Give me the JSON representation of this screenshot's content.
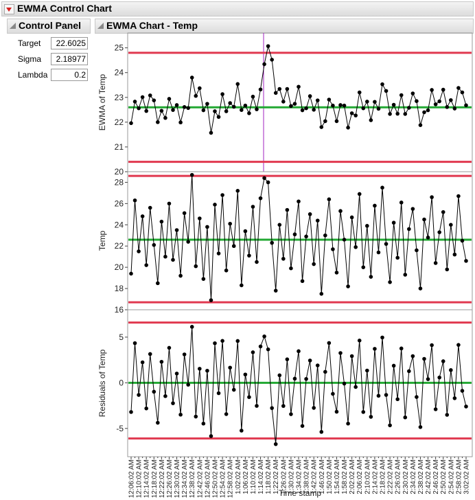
{
  "header": {
    "title": "EWMA Control Chart"
  },
  "control_panel": {
    "title": "Control Panel",
    "fields": [
      {
        "label": "Target",
        "value": "22.6025"
      },
      {
        "label": "Sigma",
        "value": "2.18977"
      },
      {
        "label": "Lambda",
        "value": "0.2"
      }
    ]
  },
  "chart_panel": {
    "title": "EWMA Chart - Temp"
  },
  "chart_data": [
    {
      "type": "line",
      "y_label": "EWMA of Temp",
      "color": "#000000",
      "ylim": [
        20,
        25.6
      ],
      "yticks": [
        20,
        21,
        22,
        23,
        24,
        25
      ],
      "center_line": 22.6,
      "ucl": 24.8,
      "lcl": 20.4,
      "center_color": "#22a832",
      "limit_color": "#e0384f",
      "values": [
        21.96,
        22.83,
        22.56,
        23.01,
        22.45,
        23.08,
        22.88,
        22.0,
        22.46,
        22.17,
        22.94,
        22.49,
        22.69,
        21.99,
        22.61,
        22.57,
        23.8,
        23.06,
        23.37,
        22.48,
        22.74,
        21.57,
        22.44,
        22.21,
        23.13,
        22.44,
        22.77,
        22.62,
        23.54,
        22.49,
        22.67,
        22.36,
        23.03,
        22.52,
        23.32,
        24.34,
        25.07,
        24.52,
        23.18,
        23.34,
        22.83,
        23.34,
        22.65,
        22.74,
        23.43,
        22.48,
        22.56,
        23.05,
        22.5,
        22.88,
        21.8,
        22.04,
        22.91,
        22.67,
        22.04,
        22.69,
        22.67,
        21.78,
        22.36,
        22.27,
        23.2,
        22.56,
        22.83,
        22.08,
        22.82,
        22.54,
        23.53,
        23.26,
        22.33,
        22.7,
        22.34,
        23.09,
        22.33,
        22.58,
        23.16,
        22.85,
        21.88,
        22.4,
        22.48,
        23.3,
        22.72,
        22.84,
        23.31,
        22.61,
        22.89,
        22.55,
        23.38,
        23.2,
        22.68
      ]
    },
    {
      "type": "line",
      "y_label": "Temp",
      "color": "#000000",
      "ylim": [
        16,
        29
      ],
      "yticks": [
        16,
        18,
        20,
        22,
        24,
        26,
        28
      ],
      "center_line": 22.6,
      "ucl": 28.6,
      "lcl": 16.7,
      "center_color": "#22a832",
      "limit_color": "#e0384f",
      "values": [
        19.4,
        26.3,
        21.5,
        24.8,
        20.2,
        25.6,
        22.1,
        18.5,
        24.3,
        21.0,
        26.0,
        20.7,
        23.5,
        19.2,
        25.1,
        22.4,
        28.7,
        20.1,
        24.6,
        18.9,
        23.8,
        16.9,
        25.9,
        21.3,
        26.8,
        19.7,
        24.1,
        22.0,
        27.2,
        18.3,
        23.4,
        21.1,
        25.7,
        20.5,
        26.5,
        28.4,
        28.0,
        22.3,
        17.8,
        24.0,
        20.8,
        25.4,
        19.9,
        23.1,
        26.2,
        18.7,
        22.9,
        25.0,
        20.3,
        24.4,
        17.5,
        23.0,
        26.4,
        21.7,
        19.5,
        25.3,
        22.6,
        18.2,
        24.7,
        21.9,
        26.9,
        20.0,
        23.9,
        19.1,
        25.8,
        21.4,
        27.5,
        22.2,
        18.6,
        24.2,
        20.9,
        26.1,
        19.3,
        23.6,
        25.5,
        21.6,
        18.0,
        24.5,
        22.8,
        26.6,
        20.4,
        23.3,
        25.2,
        19.8,
        24.0,
        21.2,
        26.7,
        22.5,
        20.6
      ]
    },
    {
      "type": "line",
      "y_label": "Residuals of Temp",
      "x_label": "Time stamp",
      "color": "#000000",
      "ylim": [
        -8.1,
        8.0
      ],
      "yticks": [
        -5,
        0,
        5
      ],
      "center_line": 0,
      "ucl": 6.6,
      "lcl": -6.1,
      "center_color": "#22a832",
      "limit_color": "#e0384f",
      "categories": [
        "12:06:02 AM",
        null,
        "12:10:02 AM",
        null,
        "12:14:02 AM",
        null,
        "12:18:02 AM",
        null,
        "12:22:02 AM",
        null,
        "12:26:02 AM",
        null,
        "12:30:02 AM",
        null,
        "12:34:02 AM",
        null,
        "12:38:02 AM",
        null,
        "12:42:02 AM",
        null,
        "12:46:02 AM",
        null,
        "12:50:02 AM",
        null,
        "12:54:02 AM",
        null,
        "12:58:02 AM",
        null,
        "1:02:02 AM",
        null,
        "1:06:02 AM",
        null,
        "1:10:02 AM",
        null,
        "1:14:02 AM",
        null,
        "1:18:02 AM",
        null,
        "1:22:02 AM",
        null,
        "1:26:02 AM",
        null,
        "1:30:02 AM",
        null,
        "1:34:02 AM",
        null,
        "1:38:02 AM",
        null,
        "1:42:02 AM",
        null,
        "1:46:02 AM",
        null,
        "1:50:02 AM",
        null,
        "1:54:02 AM",
        null,
        "1:58:02 AM",
        null,
        "2:02:02 AM",
        null,
        "2:06:02 AM",
        null,
        "2:10:02 AM",
        null,
        "2:14:02 AM",
        null,
        "2:18:02 AM",
        null,
        "2:22:02 AM",
        null,
        "2:26:02 AM",
        null,
        "2:30:02 AM",
        null,
        "2:34:02 AM",
        null,
        "2:38:02 AM",
        null,
        "2:42:02 AM",
        null,
        "2:46:02 AM",
        null,
        "2:50:02 AM",
        null,
        "2:54:02 AM",
        null,
        "2:58:02 AM",
        null,
        "3:02:02 AM"
      ],
      "values": [
        -3.2,
        4.34,
        -1.33,
        2.24,
        -2.81,
        3.15,
        -0.98,
        -4.38,
        2.3,
        -1.46,
        3.83,
        -2.24,
        1.01,
        -3.49,
        3.11,
        -0.21,
        6.13,
        -3.7,
        1.54,
        -4.47,
        1.32,
        -5.84,
        4.33,
        -1.14,
        4.59,
        -3.43,
        1.66,
        -0.77,
        4.58,
        -5.24,
        0.91,
        -1.57,
        3.34,
        -2.53,
        3.98,
        5.08,
        3.66,
        -2.77,
        -6.72,
        0.82,
        -2.54,
        2.57,
        -3.44,
        0.45,
        3.46,
        -4.73,
        0.42,
        2.44,
        -2.75,
        1.9,
        -5.38,
        1.2,
        4.36,
        -1.21,
        -3.17,
        3.26,
        -0.09,
        -4.47,
        2.92,
        -0.46,
        4.63,
        -3.2,
        1.34,
        -3.73,
        3.72,
        -1.42,
        4.96,
        -1.33,
        -4.66,
        1.87,
        -1.8,
        3.76,
        -3.79,
        1.27,
        2.92,
        -1.56,
        -4.85,
        2.62,
        0.4,
        4.12,
        -2.9,
        0.58,
        2.36,
        -3.51,
        1.39,
        -1.69,
        4.15,
        -0.88,
        -2.6
      ]
    }
  ]
}
